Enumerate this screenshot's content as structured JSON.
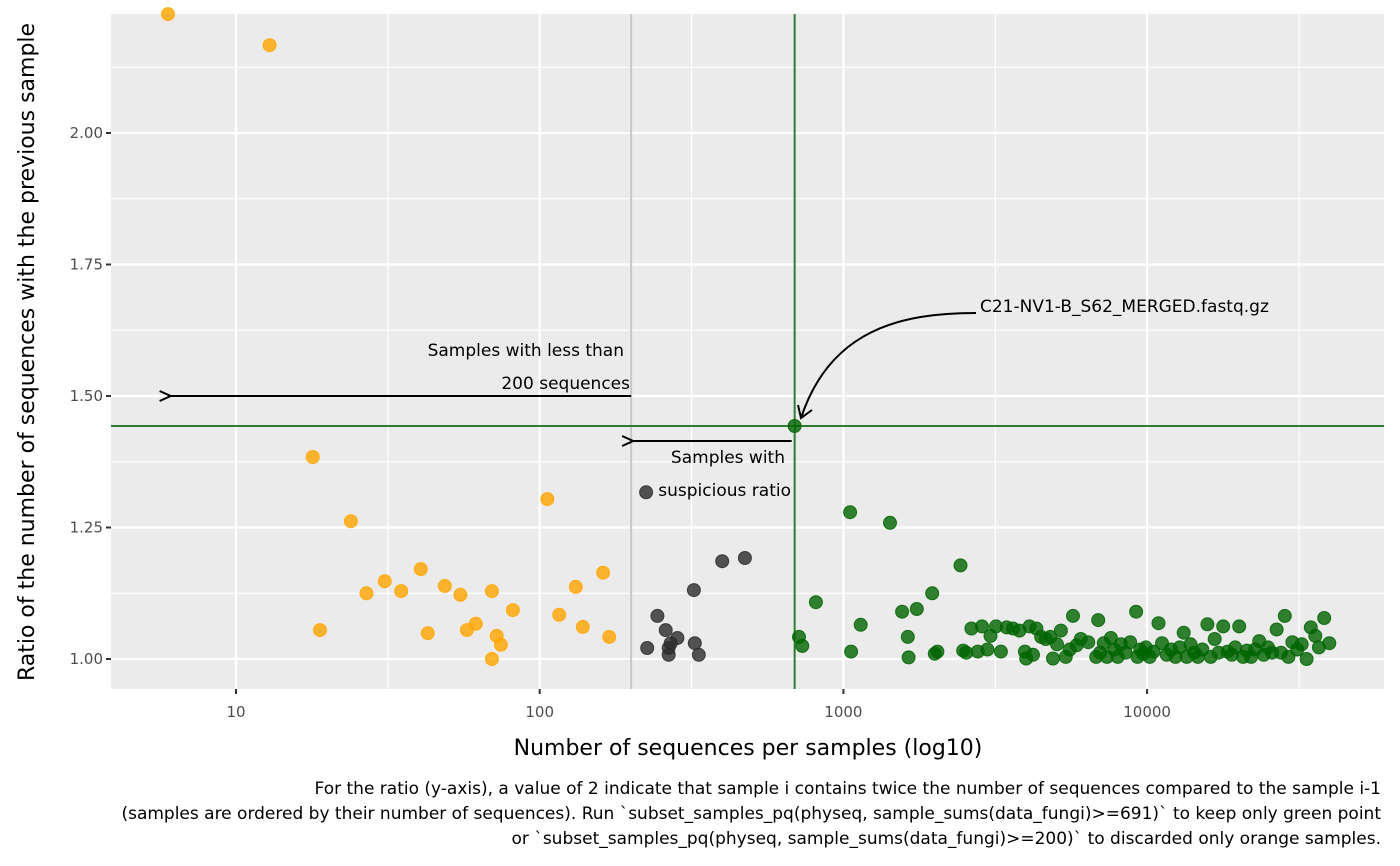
{
  "chart_data": {
    "type": "scatter",
    "title": "",
    "xlabel": "Number of sequences per samples (log10)",
    "ylabel": "Ratio of the number of sequences with the previous sample",
    "x_scale": "log10",
    "xlim": [
      4.0,
      52000
    ],
    "ylim": [
      0.94,
      2.23
    ],
    "x_ticks": [
      {
        "value": 10,
        "label": "10"
      },
      {
        "value": 100,
        "label": "100"
      },
      {
        "value": 1000,
        "label": "1000"
      },
      {
        "value": 10000,
        "label": "10000"
      }
    ],
    "y_ticks": [
      {
        "value": 1.0,
        "label": "1.00"
      },
      {
        "value": 1.25,
        "label": "1.25"
      },
      {
        "value": 1.5,
        "label": "1.50"
      },
      {
        "value": 1.75,
        "label": "1.75"
      },
      {
        "value": 2.0,
        "label": "2.00"
      }
    ],
    "grid": true,
    "legend": "none",
    "colors": {
      "panel_bg": "#ebebeb",
      "grid": "#ffffff",
      "orange": "#ffa500",
      "gray": "#2b2b2b",
      "green": "#006400",
      "threshold_gray": "#c8c8c8",
      "threshold_green": "#2e7d32"
    },
    "thresholds": {
      "min_sequences": 200,
      "suspicious_sequences": 691,
      "suspicious_ratio": 1.443
    },
    "series": [
      {
        "name": "orange (< 200 sequences)",
        "color_key": "orange",
        "points": [
          [
            5.97,
            2.226
          ],
          [
            12.9,
            2.167
          ],
          [
            17.9,
            1.384
          ],
          [
            18.9,
            1.055
          ],
          [
            23.9,
            1.262
          ],
          [
            26.9,
            1.125
          ],
          [
            30.9,
            1.148
          ],
          [
            35.0,
            1.129
          ],
          [
            40.6,
            1.171
          ],
          [
            42.8,
            1.049
          ],
          [
            48.7,
            1.139
          ],
          [
            54.8,
            1.122
          ],
          [
            57.6,
            1.055
          ],
          [
            61.6,
            1.067
          ],
          [
            69.6,
            1.129
          ],
          [
            69.6,
            1.0
          ],
          [
            72.2,
            1.044
          ],
          [
            74.5,
            1.027
          ],
          [
            81.6,
            1.093
          ],
          [
            105.9,
            1.304
          ],
          [
            115.9,
            1.084
          ],
          [
            131.5,
            1.137
          ],
          [
            138.6,
            1.061
          ],
          [
            161.7,
            1.164
          ],
          [
            169.4,
            1.042
          ]
        ]
      },
      {
        "name": "gray (suspicious ratio)",
        "color_key": "gray",
        "points": [
          [
            224,
            1.317
          ],
          [
            226,
            1.021
          ],
          [
            244,
            1.082
          ],
          [
            260,
            1.055
          ],
          [
            266,
            1.021
          ],
          [
            266,
            1.008
          ],
          [
            270,
            1.03
          ],
          [
            284,
            1.04
          ],
          [
            322,
            1.131
          ],
          [
            324,
            1.03
          ],
          [
            334,
            1.008
          ],
          [
            399,
            1.186
          ],
          [
            474,
            1.192
          ]
        ]
      },
      {
        "name": "green (kept samples)",
        "color_key": "green",
        "points": [
          [
            691,
            1.443
          ],
          [
            714,
            1.042
          ],
          [
            732,
            1.025
          ],
          [
            812,
            1.108
          ],
          [
            1052,
            1.279
          ],
          [
            1060,
            1.014
          ],
          [
            1140,
            1.065
          ],
          [
            1424,
            1.259
          ],
          [
            1560,
            1.09
          ],
          [
            1630,
            1.042
          ],
          [
            1640,
            1.003
          ],
          [
            1745,
            1.095
          ],
          [
            1960,
            1.125
          ],
          [
            2000,
            1.01
          ],
          [
            2040,
            1.014
          ],
          [
            2430,
            1.178
          ],
          [
            2480,
            1.016
          ],
          [
            2540,
            1.012
          ],
          [
            2640,
            1.058
          ],
          [
            2770,
            1.014
          ],
          [
            2860,
            1.062
          ],
          [
            2980,
            1.018
          ],
          [
            3050,
            1.044
          ],
          [
            3180,
            1.062
          ],
          [
            3300,
            1.014
          ],
          [
            3450,
            1.06
          ],
          [
            3620,
            1.058
          ],
          [
            3800,
            1.054
          ],
          [
            3960,
            1.014
          ],
          [
            4000,
            1.001
          ],
          [
            4100,
            1.062
          ],
          [
            4210,
            1.008
          ],
          [
            4320,
            1.058
          ],
          [
            4480,
            1.042
          ],
          [
            4640,
            1.038
          ],
          [
            4800,
            1.042
          ],
          [
            4900,
            1.001
          ],
          [
            5050,
            1.028
          ],
          [
            5200,
            1.054
          ],
          [
            5400,
            1.004
          ],
          [
            5560,
            1.018
          ],
          [
            5700,
            1.082
          ],
          [
            5860,
            1.026
          ],
          [
            6050,
            1.038
          ],
          [
            6400,
            1.032
          ],
          [
            6800,
            1.004
          ],
          [
            6900,
            1.074
          ],
          [
            7000,
            1.012
          ],
          [
            7200,
            1.03
          ],
          [
            7380,
            1.004
          ],
          [
            7600,
            1.04
          ],
          [
            7800,
            1.018
          ],
          [
            8000,
            1.004
          ],
          [
            8200,
            1.028
          ],
          [
            8500,
            1.012
          ],
          [
            8800,
            1.032
          ],
          [
            9200,
            1.09
          ],
          [
            9300,
            1.004
          ],
          [
            9500,
            1.018
          ],
          [
            9700,
            1.01
          ],
          [
            9900,
            1.022
          ],
          [
            10200,
            1.004
          ],
          [
            10500,
            1.014
          ],
          [
            10900,
            1.068
          ],
          [
            11200,
            1.03
          ],
          [
            11600,
            1.008
          ],
          [
            12000,
            1.018
          ],
          [
            12400,
            1.004
          ],
          [
            12800,
            1.022
          ],
          [
            13200,
            1.05
          ],
          [
            13500,
            1.004
          ],
          [
            13900,
            1.028
          ],
          [
            14300,
            1.012
          ],
          [
            14700,
            1.004
          ],
          [
            15200,
            1.018
          ],
          [
            15800,
            1.066
          ],
          [
            16200,
            1.004
          ],
          [
            16700,
            1.038
          ],
          [
            17200,
            1.012
          ],
          [
            17800,
            1.062
          ],
          [
            18400,
            1.014
          ],
          [
            19000,
            1.008
          ],
          [
            19500,
            1.022
          ],
          [
            20100,
            1.062
          ],
          [
            20700,
            1.004
          ],
          [
            21300,
            1.016
          ],
          [
            22000,
            1.004
          ],
          [
            22700,
            1.018
          ],
          [
            23400,
            1.034
          ],
          [
            24200,
            1.008
          ],
          [
            25000,
            1.022
          ],
          [
            25800,
            1.012
          ],
          [
            26700,
            1.056
          ],
          [
            27600,
            1.012
          ],
          [
            28400,
            1.082
          ],
          [
            29200,
            1.004
          ],
          [
            30100,
            1.032
          ],
          [
            31200,
            1.018
          ],
          [
            32300,
            1.028
          ],
          [
            33500,
            1.0
          ],
          [
            34600,
            1.06
          ],
          [
            35800,
            1.044
          ],
          [
            36800,
            1.022
          ],
          [
            38300,
            1.078
          ],
          [
            39800,
            1.03
          ]
        ]
      }
    ],
    "annotations": {
      "less_than_200": {
        "lines": [
          "Samples with less than",
          "200 sequences"
        ],
        "arrow_from": [
          200,
          1.5
        ],
        "arrow_to": [
          6,
          1.5
        ]
      },
      "suspicious": {
        "lines": [
          "Samples with",
          "suspicious ratio"
        ],
        "arrow_from": [
          691,
          1.415
        ],
        "arrow_to": [
          200,
          1.415
        ]
      },
      "highlight_label": {
        "text": "C21-NV1-B_S62_MERGED.fastq.gz",
        "points_to": [
          691,
          1.443
        ]
      }
    },
    "caption_lines": [
      "For the ratio (y-axis), a value of 2 indicate that sample i contains twice the number of sequences compared to the sample i-1",
      "(samples are ordered by their number of sequences). Run `subset_samples_pq(physeq, sample_sums(data_fungi)>=691)` to keep only green point",
      "or `subset_samples_pq(physeq, sample_sums(data_fungi)>=200)` to discarded only orange samples."
    ]
  }
}
